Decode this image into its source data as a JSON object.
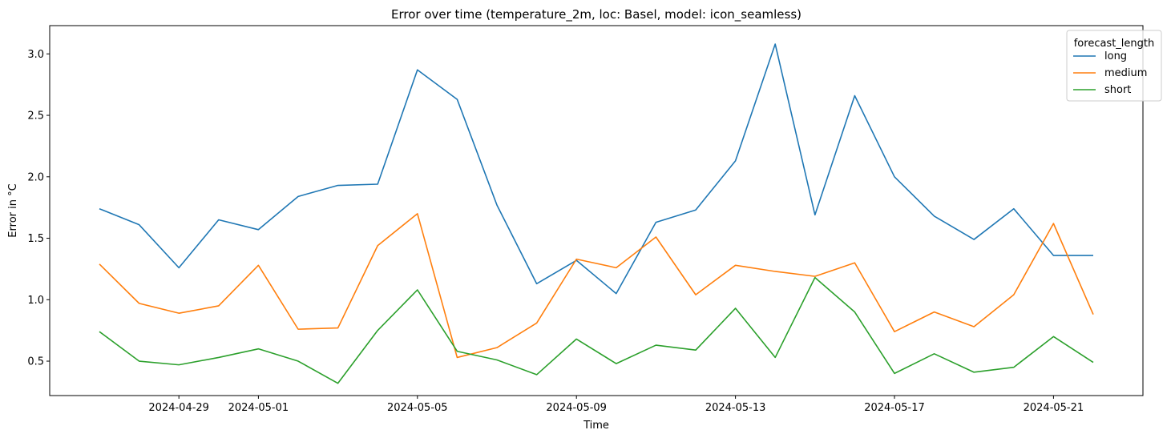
{
  "chart_data": {
    "type": "line",
    "title": "Error over time (temperature_2m, loc: Basel, model: icon_seamless)",
    "xlabel": "Time",
    "ylabel": "Error in °C",
    "x": [
      "2024-04-27",
      "2024-04-28",
      "2024-04-29",
      "2024-04-30",
      "2024-05-01",
      "2024-05-02",
      "2024-05-03",
      "2024-05-04",
      "2024-05-05",
      "2024-05-06",
      "2024-05-07",
      "2024-05-08",
      "2024-05-09",
      "2024-05-10",
      "2024-05-11",
      "2024-05-12",
      "2024-05-13",
      "2024-05-14",
      "2024-05-15",
      "2024-05-16",
      "2024-05-17",
      "2024-05-18",
      "2024-05-19",
      "2024-05-20",
      "2024-05-21",
      "2024-05-22"
    ],
    "xticks": [
      "2024-04-29",
      "2024-05-01",
      "2024-05-05",
      "2024-05-09",
      "2024-05-13",
      "2024-05-17",
      "2024-05-21"
    ],
    "ylim": [
      0.22,
      3.23
    ],
    "yticks": [
      "0.5",
      "1.0",
      "1.5",
      "2.0",
      "2.5",
      "3.0"
    ],
    "grid": false,
    "legend": {
      "title": "forecast_length",
      "position": "top-right"
    },
    "series": [
      {
        "name": "long",
        "color": "#1f77b4",
        "values": [
          1.74,
          1.61,
          1.26,
          1.65,
          1.57,
          1.84,
          1.93,
          1.94,
          2.87,
          2.63,
          1.77,
          1.13,
          1.32,
          1.05,
          1.63,
          1.73,
          2.13,
          3.08,
          1.69,
          2.66,
          2.0,
          1.68,
          1.49,
          1.74,
          1.36,
          1.36
        ]
      },
      {
        "name": "medium",
        "color": "#ff7f0e",
        "values": [
          1.29,
          0.97,
          0.89,
          0.95,
          1.28,
          0.76,
          0.77,
          1.44,
          1.7,
          0.53,
          0.61,
          0.81,
          1.33,
          1.26,
          1.51,
          1.04,
          1.28,
          1.23,
          1.19,
          1.3,
          0.74,
          0.9,
          0.78,
          1.04,
          1.62,
          0.88
        ]
      },
      {
        "name": "short",
        "color": "#2ca02c",
        "values": [
          0.74,
          0.5,
          0.47,
          0.53,
          0.6,
          0.5,
          0.32,
          0.75,
          1.08,
          0.58,
          0.51,
          0.39,
          0.68,
          0.48,
          0.63,
          0.59,
          0.93,
          0.53,
          1.18,
          0.9,
          0.4,
          0.56,
          0.41,
          0.45,
          0.7,
          0.49
        ]
      }
    ]
  }
}
